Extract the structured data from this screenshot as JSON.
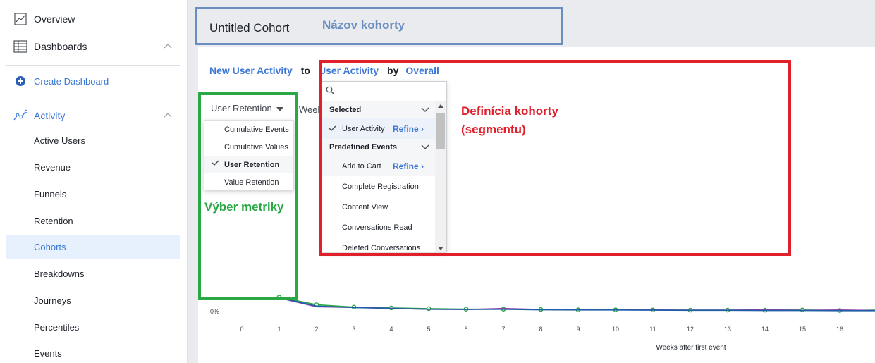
{
  "sidebar": {
    "overview": "Overview",
    "dashboards": "Dashboards",
    "create_dashboard": "Create Dashboard",
    "activity": "Activity",
    "subitems": [
      "Active Users",
      "Revenue",
      "Funnels",
      "Retention",
      "Cohorts",
      "Breakdowns",
      "Journeys",
      "Percentiles",
      "Events"
    ],
    "active_item": "Cohorts"
  },
  "header": {
    "cohort_name": "Untitled Cohort",
    "annotation": "Názov kohorty"
  },
  "definition": {
    "start_event": "New User Activity",
    "to_word": "to",
    "return_event": "User Activity",
    "by_word": "by",
    "segment": "Overall",
    "annotation_line1": "Definícia kohorty",
    "annotation_line2": "(segmentu)"
  },
  "metric": {
    "selected": "User Retention",
    "weeks_peek": "Week",
    "options": [
      "Cumulative Events",
      "Cumulative Values",
      "User Retention",
      "Value Retention"
    ],
    "annotation": "Výber metriky"
  },
  "event_dropdown": {
    "search_placeholder": "",
    "selected_header": "Selected",
    "selected_items": [
      "User Activity"
    ],
    "predefined_header": "Predefined Events",
    "predefined_items": [
      "Add to Cart",
      "Complete Registration",
      "Content View",
      "Conversations Read",
      "Deleted Conversations"
    ],
    "refine_label": "Refine ›"
  },
  "colors": {
    "accent": "#3b78d6",
    "annotation_red": "#e0212c",
    "annotation_green": "#2aa846",
    "annotation_blue": "#6a8ec0"
  },
  "chart_data": {
    "type": "line",
    "xlabel": "Weeks after first event",
    "y_tick_label": "0%",
    "x": [
      1,
      2,
      3,
      4,
      5,
      6,
      7,
      8,
      9,
      10,
      11,
      12,
      13,
      14,
      15,
      16,
      17
    ],
    "x_ticks": [
      "0",
      "1",
      "2",
      "3",
      "4",
      "5",
      "6",
      "7",
      "8",
      "9",
      "10",
      "11",
      "12",
      "13",
      "14",
      "15",
      "16",
      "1"
    ],
    "series": [
      {
        "color": "#2aa846",
        "values": [
          8.5,
          4.0,
          2.6,
          2.1,
          1.7,
          1.4,
          1.4,
          1.2,
          1.0,
          1.0,
          0.9,
          0.8,
          0.8,
          0.8,
          0.9,
          0.6,
          0.8
        ]
      },
      {
        "color": "#8e44ad",
        "values": [
          8.0,
          2.8,
          2.4,
          1.9,
          1.3,
          1.2,
          1.8,
          1.2,
          1.0,
          1.2,
          0.9,
          0.8,
          0.8,
          1.0,
          0.7,
          0.9,
          0.6
        ]
      },
      {
        "color": "#1f5fa8",
        "values": [
          8.2,
          3.2,
          2.3,
          1.8,
          1.4,
          1.2,
          1.3,
          1.0,
          0.9,
          0.9,
          0.8,
          0.7,
          0.7,
          0.6,
          0.6,
          0.5,
          0.5
        ]
      }
    ]
  }
}
